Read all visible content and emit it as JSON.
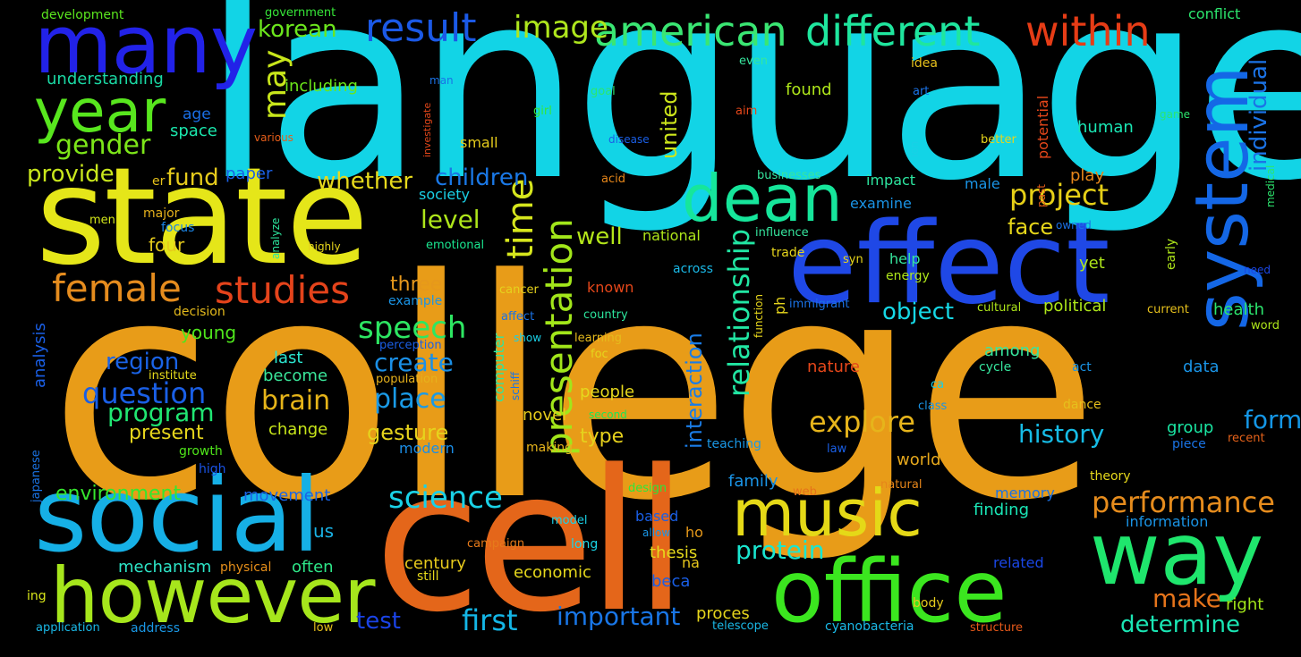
{
  "words": [
    {
      "text": "college",
      "color": "#e89c18"
    },
    {
      "text": "language",
      "color": "#12d4e6"
    },
    {
      "text": "state",
      "color": "#e5e619"
    },
    {
      "text": "cell",
      "color": "#e4661a"
    },
    {
      "text": "effect",
      "color": "#1f48e6"
    },
    {
      "text": "social",
      "color": "#16b0e6"
    },
    {
      "text": "however",
      "color": "#a6e61c"
    },
    {
      "text": "office",
      "color": "#3be61f"
    },
    {
      "text": "many",
      "color": "#2222e8"
    },
    {
      "text": "way",
      "color": "#1fe66d"
    },
    {
      "text": "music",
      "color": "#e5d917"
    },
    {
      "text": "system",
      "color": "#1467e6"
    },
    {
      "text": "dean",
      "color": "#16e69b"
    },
    {
      "text": "year",
      "color": "#58e61e"
    },
    {
      "text": "american",
      "color": "#3ae673"
    },
    {
      "text": "different",
      "color": "#1fe69e"
    },
    {
      "text": "within",
      "color": "#e63c16"
    },
    {
      "text": "result",
      "color": "#1b59e6"
    },
    {
      "text": "image",
      "color": "#aee61d"
    },
    {
      "text": "female",
      "color": "#e58c1e"
    },
    {
      "text": "studies",
      "color": "#e4431b"
    },
    {
      "text": "presentation",
      "color": "#a2e61a"
    },
    {
      "text": "time",
      "color": "#d6e61d"
    },
    {
      "text": "science",
      "color": "#1ad1e6"
    },
    {
      "text": "performance",
      "color": "#e68c1d"
    },
    {
      "text": "relationship",
      "color": "#21e6a3"
    },
    {
      "text": "question",
      "color": "#1a5fe6"
    },
    {
      "text": "project",
      "color": "#e6cf17"
    },
    {
      "text": "gender",
      "color": "#7de619"
    },
    {
      "text": "speech",
      "color": "#2de662"
    },
    {
      "text": "explore",
      "color": "#e6b41b"
    },
    {
      "text": "history",
      "color": "#16bce6"
    },
    {
      "text": "program",
      "color": "#20e672"
    },
    {
      "text": "first",
      "color": "#14b6e6"
    },
    {
      "text": "important",
      "color": "#1976e6"
    },
    {
      "text": "create",
      "color": "#1a8fe6"
    },
    {
      "text": "brain",
      "color": "#e6b419"
    },
    {
      "text": "place",
      "color": "#1a9ae6"
    },
    {
      "text": "level",
      "color": "#aee61a"
    },
    {
      "text": "children",
      "color": "#1a78e6"
    },
    {
      "text": "may",
      "color": "#c8e61b"
    },
    {
      "text": "korean",
      "color": "#6ce61d"
    },
    {
      "text": "provide",
      "color": "#c8e61c"
    },
    {
      "text": "fund",
      "color": "#e6cb1c"
    },
    {
      "text": "whether",
      "color": "#e6d91c"
    },
    {
      "text": "individual",
      "color": "#1b73e6"
    },
    {
      "text": "united",
      "color": "#cde61b"
    },
    {
      "text": "interaction",
      "color": "#1a7ce6"
    },
    {
      "text": "form",
      "color": "#1496e6"
    },
    {
      "text": "protein",
      "color": "#1ae6d0"
    },
    {
      "text": "make",
      "color": "#e6741b"
    },
    {
      "text": "determine",
      "color": "#1ae6b4"
    },
    {
      "text": "region",
      "color": "#1a63e6"
    },
    {
      "text": "object",
      "color": "#16d8e6"
    },
    {
      "text": "gesture",
      "color": "#e6d31c"
    },
    {
      "text": "test",
      "color": "#1a43e6"
    },
    {
      "text": "well",
      "color": "#b4e61a"
    },
    {
      "text": "face",
      "color": "#e6d61a"
    },
    {
      "text": "present",
      "color": "#e6d51c"
    },
    {
      "text": "three",
      "color": "#e6981c"
    },
    {
      "text": "environment",
      "color": "#36e62e"
    },
    {
      "text": "type",
      "color": "#e6d11c"
    },
    {
      "text": "understanding",
      "color": "#1ad9a4"
    },
    {
      "text": "including",
      "color": "#6be61a"
    },
    {
      "text": "development",
      "color": "#5be61e"
    },
    {
      "text": "government",
      "color": "#36e638"
    },
    {
      "text": "conflict",
      "color": "#2ce66e"
    },
    {
      "text": "age",
      "color": "#1a6fe6"
    },
    {
      "text": "space",
      "color": "#1ae6ac"
    },
    {
      "text": "paper",
      "color": "#1a60e6"
    },
    {
      "text": "young",
      "color": "#4fe61c"
    },
    {
      "text": "four",
      "color": "#e6cb1b"
    },
    {
      "text": "major",
      "color": "#e6b11c"
    },
    {
      "text": "focus",
      "color": "#1a84e6"
    },
    {
      "text": "men",
      "color": "#d2e61a"
    },
    {
      "text": "er",
      "color": "#e6c21a"
    },
    {
      "text": "decision",
      "color": "#e6bb1c"
    },
    {
      "text": "analysis",
      "color": "#1a5fe6"
    },
    {
      "text": "institute",
      "color": "#e6da1c"
    },
    {
      "text": "last",
      "color": "#2be6d0"
    },
    {
      "text": "become",
      "color": "#3ae69a"
    },
    {
      "text": "change",
      "color": "#c8e61a"
    },
    {
      "text": "movement",
      "color": "#1a64e6"
    },
    {
      "text": "us",
      "color": "#1ab3e6"
    },
    {
      "text": "mechanism",
      "color": "#2de6c8"
    },
    {
      "text": "physical",
      "color": "#e68f1a"
    },
    {
      "text": "often",
      "color": "#2ee688"
    },
    {
      "text": "growth",
      "color": "#4fe61a"
    },
    {
      "text": "high",
      "color": "#1a53e6"
    },
    {
      "text": "japanese",
      "color": "#1a74e6"
    },
    {
      "text": "ing",
      "color": "#d8e61a"
    },
    {
      "text": "application",
      "color": "#1ab8e6"
    },
    {
      "text": "address",
      "color": "#1a98e6"
    },
    {
      "text": "low",
      "color": "#e6c01c"
    },
    {
      "text": "still",
      "color": "#e6d81c"
    },
    {
      "text": "long",
      "color": "#1ad5e6"
    },
    {
      "text": "campaign",
      "color": "#e67a1a"
    },
    {
      "text": "model",
      "color": "#1ad1e6"
    },
    {
      "text": "design",
      "color": "#2ee63a"
    },
    {
      "text": "allow",
      "color": "#1a96e6"
    },
    {
      "text": "ho",
      "color": "#e6981a"
    },
    {
      "text": "na",
      "color": "#e6c61c"
    },
    {
      "text": "beca",
      "color": "#1a5fe6"
    },
    {
      "text": "based",
      "color": "#1a5fe6"
    },
    {
      "text": "thesis",
      "color": "#e6da1c"
    },
    {
      "text": "century",
      "color": "#e6c91c"
    },
    {
      "text": "economic",
      "color": "#e6d81c"
    },
    {
      "text": "proces",
      "color": "#e6d51c"
    },
    {
      "text": "telescope",
      "color": "#1ab8e6"
    },
    {
      "text": "cyanobacteria",
      "color": "#1ab8e6"
    },
    {
      "text": "structure",
      "color": "#e6591a"
    },
    {
      "text": "body",
      "color": "#e6cc1c"
    },
    {
      "text": "right",
      "color": "#a2e61a"
    },
    {
      "text": "related",
      "color": "#1a47e6"
    },
    {
      "text": "finding",
      "color": "#1ae6b6"
    },
    {
      "text": "memory",
      "color": "#1a72e6"
    },
    {
      "text": "information",
      "color": "#1a94e6"
    },
    {
      "text": "natural",
      "color": "#e6861a"
    },
    {
      "text": "web",
      "color": "#e6711a"
    },
    {
      "text": "family",
      "color": "#1a94e6"
    },
    {
      "text": "world",
      "color": "#e6a81c"
    },
    {
      "text": "law",
      "color": "#1a5fe6"
    },
    {
      "text": "theory",
      "color": "#e6d81c"
    },
    {
      "text": "piece",
      "color": "#1a74e6"
    },
    {
      "text": "recent",
      "color": "#e6621a"
    },
    {
      "text": "group",
      "color": "#1ae6a3"
    },
    {
      "text": "dance",
      "color": "#e6c01c"
    },
    {
      "text": "teaching",
      "color": "#1a98e6"
    },
    {
      "text": "making",
      "color": "#e6b41c"
    },
    {
      "text": "modern",
      "color": "#1a8de6"
    },
    {
      "text": "novel",
      "color": "#e6cc1c"
    },
    {
      "text": "second",
      "color": "#1ae657"
    },
    {
      "text": "people",
      "color": "#e6d81c"
    },
    {
      "text": "computer",
      "color": "#2de6a0"
    },
    {
      "text": "schiff",
      "color": "#1a74e6"
    },
    {
      "text": "show",
      "color": "#1ad0e6"
    },
    {
      "text": "affect",
      "color": "#1a72e6"
    },
    {
      "text": "learning",
      "color": "#e6bb1c"
    },
    {
      "text": "foc",
      "color": "#e6d51c"
    },
    {
      "text": "country",
      "color": "#2de69e"
    },
    {
      "text": "perception",
      "color": "#1a5fe6"
    },
    {
      "text": "population",
      "color": "#e6b11c"
    },
    {
      "text": "example",
      "color": "#1a94e6"
    },
    {
      "text": "known",
      "color": "#e6471a"
    },
    {
      "text": "emotional",
      "color": "#1ae690"
    },
    {
      "text": "cancer",
      "color": "#e6d21c"
    },
    {
      "text": "across",
      "color": "#1ab8e6"
    },
    {
      "text": "national",
      "color": "#aee61a"
    },
    {
      "text": "society",
      "color": "#1ad0e6"
    },
    {
      "text": "small",
      "color": "#e6cc1c"
    },
    {
      "text": "girl",
      "color": "#36e638"
    },
    {
      "text": "goal",
      "color": "#2ce66e"
    },
    {
      "text": "man",
      "color": "#1a72e6"
    },
    {
      "text": "even",
      "color": "#36e69e"
    },
    {
      "text": "aim",
      "color": "#e6471a"
    },
    {
      "text": "disease",
      "color": "#1a5fe6"
    },
    {
      "text": "acid",
      "color": "#e6861a"
    },
    {
      "text": "various",
      "color": "#e65e1a"
    },
    {
      "text": "investigate",
      "color": "#e6471a"
    },
    {
      "text": "highly",
      "color": "#e6d51c"
    },
    {
      "text": "analyze",
      "color": "#2de69e"
    },
    {
      "text": "found",
      "color": "#aee61a"
    },
    {
      "text": "idea",
      "color": "#e6c01c"
    },
    {
      "text": "art",
      "color": "#1a72e6"
    },
    {
      "text": "ion",
      "color": "#1ad0e6"
    },
    {
      "text": "potential",
      "color": "#e6471a"
    },
    {
      "text": "human",
      "color": "#1ae6b4"
    },
    {
      "text": "better",
      "color": "#e6d51c"
    },
    {
      "text": "game",
      "color": "#2ce66e"
    },
    {
      "text": "past",
      "color": "#e65e1a"
    },
    {
      "text": "medical",
      "color": "#2ce66e"
    },
    {
      "text": "play",
      "color": "#e6861a"
    },
    {
      "text": "impact",
      "color": "#2de6a0"
    },
    {
      "text": "examine",
      "color": "#1a94e6"
    },
    {
      "text": "male",
      "color": "#1a94e6"
    },
    {
      "text": "businesses",
      "color": "#36e69e"
    },
    {
      "text": "early",
      "color": "#aee61a"
    },
    {
      "text": "owned",
      "color": "#1a72e6"
    },
    {
      "text": "need",
      "color": "#1a47e6"
    },
    {
      "text": "influence",
      "color": "#36e69e"
    },
    {
      "text": "trade",
      "color": "#e6d51c"
    },
    {
      "text": "syn",
      "color": "#e6d51c"
    },
    {
      "text": "help",
      "color": "#36e69e"
    },
    {
      "text": "energy",
      "color": "#aee61a"
    },
    {
      "text": "yet",
      "color": "#aee61a"
    },
    {
      "text": "ph",
      "color": "#e6d51c"
    },
    {
      "text": "immigrant",
      "color": "#1a72e6"
    },
    {
      "text": "political",
      "color": "#aee61a"
    },
    {
      "text": "cultural",
      "color": "#aee61a"
    },
    {
      "text": "current",
      "color": "#e6c01c"
    },
    {
      "text": "health",
      "color": "#2ce66e"
    },
    {
      "text": "word",
      "color": "#aee61a"
    },
    {
      "text": "function",
      "color": "#e6d51c"
    },
    {
      "text": "nature",
      "color": "#e6471a"
    },
    {
      "text": "among",
      "color": "#36e69e"
    },
    {
      "text": "cycle",
      "color": "#36e69e"
    },
    {
      "text": "act",
      "color": "#1a94e6"
    },
    {
      "text": "data",
      "color": "#1a94e6"
    },
    {
      "text": "ca",
      "color": "#1ad0e6"
    },
    {
      "text": "class",
      "color": "#1a94e6"
    }
  ]
}
